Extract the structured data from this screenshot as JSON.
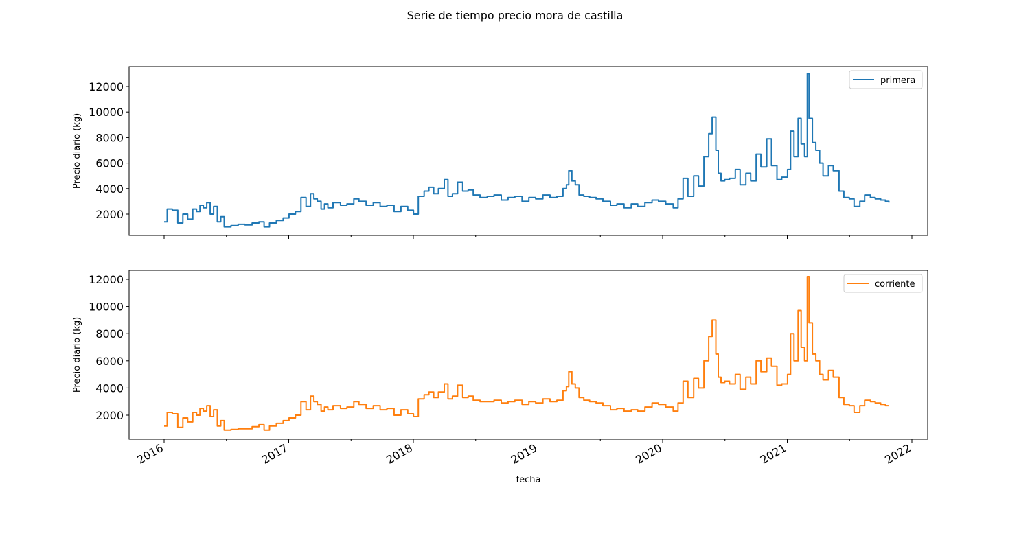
{
  "title": "Serie de tiempo precio mora de castilla",
  "colors": {
    "primera": "#1f77b4",
    "corriente": "#ff7f0e",
    "axis": "#000000",
    "legend_border": "#cccccc"
  },
  "chart_data": [
    {
      "type": "line",
      "ylabel": "Precio diario (kg)",
      "xlabel": "",
      "x_tick_labels": [
        "2016",
        "2017",
        "2018",
        "2019",
        "2020",
        "2021",
        "2022"
      ],
      "y_tick_labels": [
        "2000",
        "4000",
        "6000",
        "8000",
        "10000",
        "12000"
      ],
      "y_ticks": [
        2000,
        4000,
        6000,
        8000,
        10000,
        12000
      ],
      "legend": "top-right",
      "grid": false,
      "series": [
        {
          "name": "primera",
          "x": [
            "2016-01-01",
            "2016-01-10",
            "2016-01-25",
            "2016-02-10",
            "2016-02-25",
            "2016-03-10",
            "2016-03-25",
            "2016-04-05",
            "2016-04-15",
            "2016-04-25",
            "2016-05-05",
            "2016-05-15",
            "2016-05-25",
            "2016-06-05",
            "2016-06-15",
            "2016-06-25",
            "2016-07-15",
            "2016-08-05",
            "2016-08-25",
            "2016-09-15",
            "2016-10-05",
            "2016-10-20",
            "2016-11-05",
            "2016-11-25",
            "2016-12-15",
            "2017-01-01",
            "2017-01-20",
            "2017-02-05",
            "2017-02-20",
            "2017-03-05",
            "2017-03-15",
            "2017-03-25",
            "2017-04-05",
            "2017-04-15",
            "2017-04-25",
            "2017-05-10",
            "2017-06-01",
            "2017-06-20",
            "2017-07-10",
            "2017-07-25",
            "2017-08-15",
            "2017-09-05",
            "2017-09-25",
            "2017-10-15",
            "2017-11-05",
            "2017-11-25",
            "2017-12-15",
            "2018-01-01",
            "2018-01-15",
            "2018-02-01",
            "2018-02-15",
            "2018-03-01",
            "2018-03-15",
            "2018-04-01",
            "2018-04-12",
            "2018-04-25",
            "2018-05-10",
            "2018-05-25",
            "2018-06-10",
            "2018-06-25",
            "2018-07-15",
            "2018-08-05",
            "2018-08-25",
            "2018-09-15",
            "2018-10-05",
            "2018-10-25",
            "2018-11-15",
            "2018-12-05",
            "2018-12-25",
            "2019-01-15",
            "2019-02-05",
            "2019-02-25",
            "2019-03-15",
            "2019-03-25",
            "2019-04-01",
            "2019-04-10",
            "2019-04-20",
            "2019-05-01",
            "2019-05-15",
            "2019-06-01",
            "2019-06-20",
            "2019-07-10",
            "2019-08-01",
            "2019-08-20",
            "2019-09-10",
            "2019-10-01",
            "2019-10-20",
            "2019-11-10",
            "2019-12-01",
            "2019-12-20",
            "2020-01-10",
            "2020-02-01",
            "2020-02-15",
            "2020-03-01",
            "2020-03-15",
            "2020-04-01",
            "2020-04-15",
            "2020-05-01",
            "2020-05-15",
            "2020-05-25",
            "2020-06-05",
            "2020-06-12",
            "2020-06-20",
            "2020-07-01",
            "2020-07-15",
            "2020-08-01",
            "2020-08-15",
            "2020-09-01",
            "2020-09-15",
            "2020-10-01",
            "2020-10-15",
            "2020-11-01",
            "2020-11-15",
            "2020-12-01",
            "2020-12-15",
            "2021-01-01",
            "2021-01-10",
            "2021-01-20",
            "2021-02-01",
            "2021-02-10",
            "2021-02-20",
            "2021-02-28",
            "2021-03-05",
            "2021-03-15",
            "2021-03-25",
            "2021-04-05",
            "2021-04-15",
            "2021-05-01",
            "2021-05-15",
            "2021-06-01",
            "2021-06-15",
            "2021-07-01",
            "2021-07-15",
            "2021-08-01",
            "2021-08-15",
            "2021-09-01",
            "2021-09-15",
            "2021-10-01",
            "2021-10-15",
            "2021-10-25"
          ],
          "y": [
            1400,
            2400,
            2300,
            1300,
            2000,
            1600,
            2400,
            2200,
            2700,
            2500,
            2900,
            2000,
            2600,
            1400,
            1800,
            1000,
            1100,
            1200,
            1150,
            1300,
            1400,
            1000,
            1300,
            1500,
            1700,
            2000,
            2200,
            3300,
            2600,
            3600,
            3200,
            3000,
            2400,
            2800,
            2500,
            2900,
            2700,
            2800,
            3200,
            3000,
            2700,
            2900,
            2600,
            2700,
            2200,
            2600,
            2300,
            2000,
            3400,
            3800,
            4100,
            3600,
            4000,
            4700,
            3400,
            3600,
            4500,
            3800,
            3900,
            3500,
            3300,
            3400,
            3500,
            3100,
            3300,
            3400,
            3000,
            3300,
            3200,
            3500,
            3300,
            3400,
            4000,
            4300,
            5400,
            4600,
            4300,
            3500,
            3400,
            3300,
            3200,
            3000,
            2700,
            2800,
            2500,
            2800,
            2600,
            2900,
            3100,
            3000,
            2800,
            2500,
            3200,
            4800,
            3400,
            5000,
            4200,
            6500,
            8300,
            9600,
            7000,
            5200,
            4600,
            4700,
            4800,
            5500,
            4300,
            5200,
            4600,
            6700,
            5700,
            7900,
            5800,
            4700,
            4900,
            5500,
            8500,
            6500,
            9500,
            7500,
            6500,
            13000,
            9500,
            7600,
            7000,
            6000,
            5000,
            5800,
            5400,
            3800,
            3300,
            3200,
            2600,
            3000,
            3500,
            3300,
            3200,
            3100,
            3000,
            2900
          ]
        }
      ]
    },
    {
      "type": "line",
      "ylabel": "Precio diario (kg)",
      "xlabel": "fecha",
      "x_tick_labels": [
        "2016",
        "2017",
        "2018",
        "2019",
        "2020",
        "2021",
        "2022"
      ],
      "y_tick_labels": [
        "2000",
        "4000",
        "6000",
        "8000",
        "10000",
        "12000"
      ],
      "y_ticks": [
        2000,
        4000,
        6000,
        8000,
        10000,
        12000
      ],
      "legend": "top-right",
      "grid": false,
      "series": [
        {
          "name": "corriente",
          "x": [
            "2016-01-01",
            "2016-01-10",
            "2016-01-25",
            "2016-02-10",
            "2016-02-25",
            "2016-03-10",
            "2016-03-25",
            "2016-04-05",
            "2016-04-15",
            "2016-04-25",
            "2016-05-05",
            "2016-05-15",
            "2016-05-25",
            "2016-06-05",
            "2016-06-15",
            "2016-06-25",
            "2016-07-15",
            "2016-08-05",
            "2016-08-25",
            "2016-09-15",
            "2016-10-05",
            "2016-10-20",
            "2016-11-05",
            "2016-11-25",
            "2016-12-15",
            "2017-01-01",
            "2017-01-20",
            "2017-02-05",
            "2017-02-20",
            "2017-03-05",
            "2017-03-15",
            "2017-03-25",
            "2017-04-05",
            "2017-04-15",
            "2017-04-25",
            "2017-05-10",
            "2017-06-01",
            "2017-06-20",
            "2017-07-10",
            "2017-07-25",
            "2017-08-15",
            "2017-09-05",
            "2017-09-25",
            "2017-10-15",
            "2017-11-05",
            "2017-11-25",
            "2017-12-15",
            "2018-01-01",
            "2018-01-15",
            "2018-02-01",
            "2018-02-15",
            "2018-03-01",
            "2018-03-15",
            "2018-04-01",
            "2018-04-12",
            "2018-04-25",
            "2018-05-10",
            "2018-05-25",
            "2018-06-10",
            "2018-06-25",
            "2018-07-15",
            "2018-08-05",
            "2018-08-25",
            "2018-09-15",
            "2018-10-05",
            "2018-10-25",
            "2018-11-15",
            "2018-12-05",
            "2018-12-25",
            "2019-01-15",
            "2019-02-05",
            "2019-02-25",
            "2019-03-15",
            "2019-03-25",
            "2019-04-01",
            "2019-04-10",
            "2019-04-20",
            "2019-05-01",
            "2019-05-15",
            "2019-06-01",
            "2019-06-20",
            "2019-07-10",
            "2019-08-01",
            "2019-08-20",
            "2019-09-10",
            "2019-10-01",
            "2019-10-20",
            "2019-11-10",
            "2019-12-01",
            "2019-12-20",
            "2020-01-10",
            "2020-02-01",
            "2020-02-15",
            "2020-03-01",
            "2020-03-15",
            "2020-04-01",
            "2020-04-15",
            "2020-05-01",
            "2020-05-15",
            "2020-05-25",
            "2020-06-05",
            "2020-06-12",
            "2020-06-20",
            "2020-07-01",
            "2020-07-15",
            "2020-08-01",
            "2020-08-15",
            "2020-09-01",
            "2020-09-15",
            "2020-10-01",
            "2020-10-15",
            "2020-11-01",
            "2020-11-15",
            "2020-12-01",
            "2020-12-15",
            "2021-01-01",
            "2021-01-10",
            "2021-01-20",
            "2021-02-01",
            "2021-02-10",
            "2021-02-20",
            "2021-02-28",
            "2021-03-05",
            "2021-03-15",
            "2021-03-25",
            "2021-04-05",
            "2021-04-15",
            "2021-05-01",
            "2021-05-15",
            "2021-06-01",
            "2021-06-15",
            "2021-07-01",
            "2021-07-15",
            "2021-08-01",
            "2021-08-15",
            "2021-09-01",
            "2021-09-15",
            "2021-10-01",
            "2021-10-15",
            "2021-10-25"
          ],
          "y": [
            1200,
            2200,
            2100,
            1100,
            1800,
            1500,
            2200,
            2000,
            2500,
            2300,
            2700,
            1900,
            2400,
            1200,
            1600,
            900,
            950,
            1000,
            1000,
            1150,
            1300,
            900,
            1200,
            1400,
            1600,
            1800,
            2000,
            3000,
            2400,
            3400,
            3000,
            2800,
            2300,
            2600,
            2400,
            2700,
            2500,
            2600,
            3000,
            2800,
            2500,
            2700,
            2400,
            2500,
            2000,
            2400,
            2100,
            1900,
            3200,
            3500,
            3700,
            3300,
            3700,
            4300,
            3200,
            3400,
            4200,
            3300,
            3400,
            3100,
            3000,
            3000,
            3100,
            2900,
            3000,
            3100,
            2800,
            3000,
            2900,
            3200,
            3000,
            3100,
            3800,
            4100,
            5200,
            4300,
            4000,
            3300,
            3100,
            3000,
            2900,
            2700,
            2400,
            2500,
            2300,
            2400,
            2300,
            2600,
            2900,
            2800,
            2600,
            2300,
            2900,
            4500,
            3300,
            4700,
            4000,
            6000,
            7800,
            9000,
            6500,
            4800,
            4400,
            4500,
            4300,
            5000,
            3900,
            4800,
            4300,
            6000,
            5200,
            6200,
            5600,
            4200,
            4300,
            5000,
            8000,
            6000,
            9700,
            7000,
            6000,
            12200,
            8800,
            6500,
            6000,
            5000,
            4600,
            5300,
            4800,
            3300,
            2800,
            2700,
            2200,
            2700,
            3100,
            3000,
            2900,
            2800,
            2700,
            2700
          ]
        }
      ]
    }
  ]
}
